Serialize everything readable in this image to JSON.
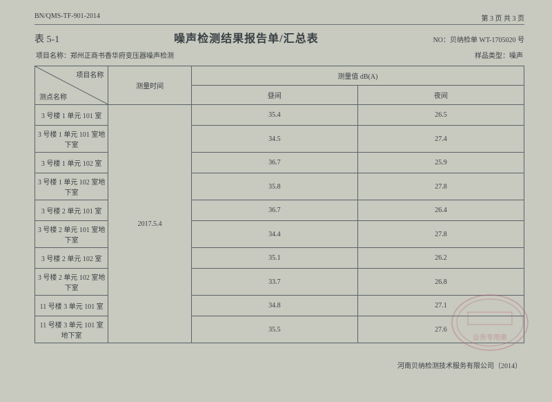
{
  "header": {
    "doc_code": "BN/QMS-TF-901-2014",
    "page_info": "第 3 页 共 3 页"
  },
  "title_block": {
    "table_number": "表 5-1",
    "main_title": "噪声检测结果报告单/汇总表",
    "report_no_label": "NO：贝纳检单",
    "report_no_value": "WT-1705020 号"
  },
  "meta": {
    "project_label": "项目名称：",
    "project_value": "郑州正商书香华府变压器噪声检测",
    "sample_label": "样品类型：",
    "sample_value": "噪声"
  },
  "table": {
    "diag_top": "项目名称",
    "diag_bottom": "测点名称",
    "time_header": "测量时间",
    "value_header": "测量值 dB(A)",
    "day_header": "昼间",
    "night_header": "夜间",
    "time_value": "2017.5.4",
    "rows": [
      {
        "point": "3 号楼 1 单元 101 室",
        "day": "35.4",
        "night": "26.5"
      },
      {
        "point": "3 号楼 1 单元 101 室地下室",
        "day": "34.5",
        "night": "27.4"
      },
      {
        "point": "3 号楼 1 单元 102 室",
        "day": "36.7",
        "night": "25.9"
      },
      {
        "point": "3 号楼 1 单元 102 室地下室",
        "day": "35.8",
        "night": "27.8"
      },
      {
        "point": "3 号楼 2 单元 101 室",
        "day": "36.7",
        "night": "26.4"
      },
      {
        "point": "3 号楼 2 单元 101 室地下室",
        "day": "34.4",
        "night": "27.8"
      },
      {
        "point": "3 号楼 2 单元 102 室",
        "day": "35.1",
        "night": "26.2"
      },
      {
        "point": "3 号楼 2 单元 102 室地下室",
        "day": "33.7",
        "night": "26.8"
      },
      {
        "point": "11 号楼 3 单元 101 室",
        "day": "34.8",
        "night": "27.1"
      },
      {
        "point": "11 号楼 3 单元 101 室地下室",
        "day": "35.5",
        "night": "27.6"
      }
    ]
  },
  "footer": {
    "company": "河南贝纳检测技术服务有限公司（2014）"
  },
  "colors": {
    "bg": "#c8c9bf",
    "text": "#3a4044",
    "border": "#5a6468",
    "stamp": "#b8667a"
  }
}
